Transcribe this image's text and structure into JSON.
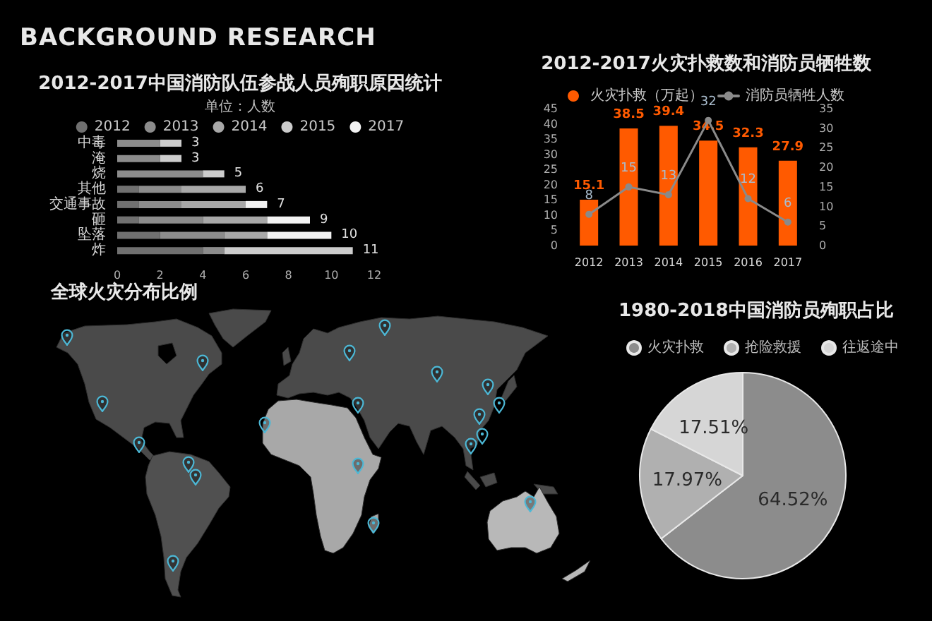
{
  "chart_data": [
    {
      "type": "other",
      "title": "BACKGROUND RESEARCH"
    },
    {
      "type": "bar",
      "title": "2012-2017中国消防队伍参战人员殉职原因统计",
      "subtitle": "单位：人数",
      "orientation": "horizontal",
      "stacked": true,
      "categories": [
        "中毒",
        "淹",
        "烧",
        "其他",
        "交通事故",
        "砸",
        "坠落",
        "炸"
      ],
      "series": [
        {
          "name": "2012",
          "color": "#707070",
          "values": [
            null,
            null,
            null,
            1,
            1,
            1,
            2,
            4
          ]
        },
        {
          "name": "2013",
          "color": "#8c8c8c",
          "values": [
            2,
            2,
            4,
            2,
            2,
            3,
            3,
            1
          ]
        },
        {
          "name": "2014",
          "color": "#a8a8a8",
          "values": [
            null,
            null,
            null,
            3,
            3,
            3,
            2,
            null
          ]
        },
        {
          "name": "2015",
          "color": "#cccccc",
          "values": [
            1,
            1,
            1,
            null,
            null,
            null,
            null,
            6
          ]
        },
        {
          "name": "2017",
          "color": "#f2f2f2",
          "values": [
            null,
            null,
            null,
            null,
            1,
            2,
            3,
            null
          ]
        }
      ],
      "totals": [
        "3",
        "3",
        "5",
        "6",
        "7",
        "9",
        "10",
        "11"
      ],
      "xlim": [
        0,
        12
      ],
      "xticks": [
        0,
        2,
        4,
        6,
        8,
        10,
        12
      ],
      "legend": "top"
    },
    {
      "type": "bar",
      "title": "2012-2017火灾扑救数和消防员牺牲数",
      "categories": [
        "2012",
        "2013",
        "2014",
        "2015",
        "2016",
        "2017"
      ],
      "series": [
        {
          "name": "火灾扑救（万起）",
          "color": "#ff5a00",
          "values": [
            15.1,
            38.5,
            39.4,
            34.5,
            32.3,
            27.9
          ]
        },
        {
          "name": "消防员牺牲人数",
          "type": "line",
          "axis": "y2",
          "color": "#8a8a8a",
          "values": [
            8,
            15,
            13,
            32,
            12,
            6
          ]
        }
      ],
      "ylim": [
        0,
        45
      ],
      "yticks": [
        0,
        5,
        10,
        15,
        20,
        25,
        30,
        35,
        40,
        45
      ],
      "y2lim": [
        0,
        35
      ],
      "y2ticks": [
        0,
        5,
        10,
        15,
        20,
        25,
        30,
        35
      ],
      "data_labels": true,
      "marker": "circle",
      "legend": "top"
    },
    {
      "type": "other",
      "title": "全球火灾分布比例"
    },
    {
      "type": "pie",
      "title": "1980-2018中国消防员殉职占比",
      "categories": [
        "火灾扑救",
        "抢险救援",
        "往返途中"
      ],
      "values": [
        64.52,
        17.97,
        17.51
      ],
      "colors": [
        "#8c8c8c",
        "#b0b0b0",
        "#d6d6d6"
      ],
      "value_labels": [
        "64.52%",
        "17.97%",
        "17.51%"
      ],
      "legend": "top"
    }
  ]
}
